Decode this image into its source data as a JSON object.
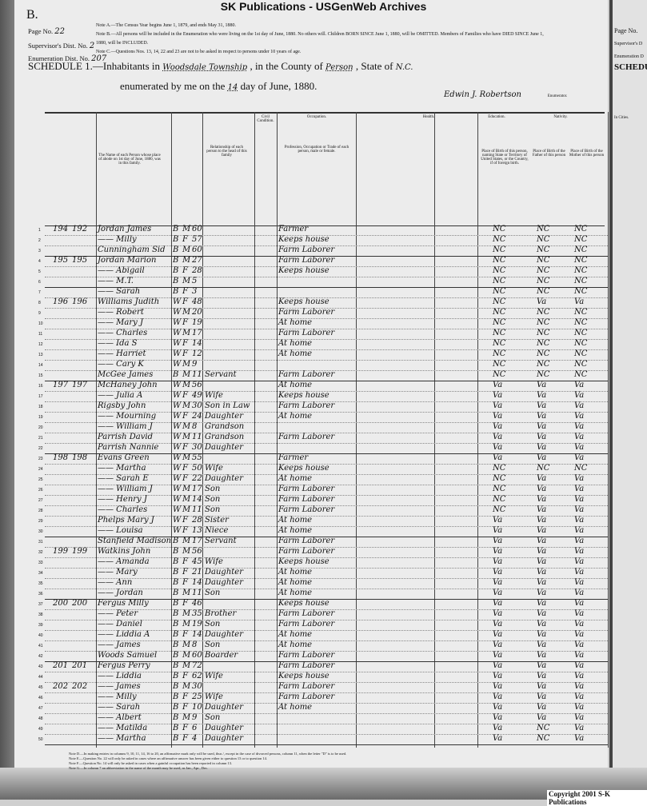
{
  "banner": "SK Publications - USGenWeb Archives",
  "corner_letter": "B.",
  "meta": {
    "page_label": "Page No.",
    "page": "22",
    "supervisor_label": "Supervisor's Dist. No.",
    "supervisor": "2",
    "enumeration_label": "Enumeration Dist. No.",
    "enumeration": "207"
  },
  "notes": [
    "Note A.—The Census Year begins June 1, 1879, and ends May 31, 1880.",
    "Note B.—All persons will be included in the Enumeration who were living on the 1st day of June, 1880. No others will. Children BORN SINCE June 1, 1880, will be OMITTED. Members of Families who have DIED SINCE June 1, 1880, will be INCLUDED.",
    "Note C.—Questions Nos. 13, 14, 22 and 23 are not to be asked in respect to persons under 10 years of age."
  ],
  "schedule": {
    "prefix": "SCHEDULE 1.—Inhabitants in",
    "township": "Woodsdale Township",
    "county_label": ", in the County of",
    "county": "Person",
    "state_label": ", State of",
    "state": "N.C.",
    "enum_prefix": "enumerated by me on the",
    "day": "14",
    "enum_suffix": "day of June, 1880.",
    "enumerator": "Edwin J. Robertson",
    "enumerator_title": "Enumerator."
  },
  "column_headers": {
    "name": "The Name of each Person whose place of abode on 1st day of June, 1880, was in this family.",
    "relationship": "Relationship of each person to the head of this family",
    "occupation": "Profession, Occupation or Trade of each person, male or female.",
    "health": "Health.",
    "education": "Education.",
    "nativity": "Nativity.",
    "birthplace": "Place of Birth of this person, naming State or Territory of United States, or the Country, if of foreign birth.",
    "father_birthplace": "Place of Birth of the Father of this person",
    "mother_birthplace": "Place of Birth of the Mother of this person",
    "civil": "Civil Condition.",
    "occupation_group": "Occupation."
  },
  "rows": [
    [
      "1",
      "194",
      "192",
      "Jordan James",
      "B",
      "M",
      "60",
      "",
      "Farmer",
      "NC",
      "NC",
      "NC"
    ],
    [
      "2",
      "",
      "",
      "—— Milly",
      "B",
      "F",
      "57",
      "",
      "Keeps house",
      "NC",
      "NC",
      "NC"
    ],
    [
      "3",
      "",
      "",
      "Cunningham Sid",
      "B",
      "M",
      "60",
      "",
      "Farm Laborer",
      "NC",
      "NC",
      "NC"
    ],
    [
      "4",
      "195",
      "195",
      "Jordan Marion",
      "B",
      "M",
      "27",
      "",
      "Farm Laborer",
      "NC",
      "NC",
      "NC"
    ],
    [
      "5",
      "",
      "",
      "—— Abigail",
      "B",
      "F",
      "28",
      "",
      "Keeps house",
      "NC",
      "NC",
      "NC"
    ],
    [
      "6",
      "",
      "",
      "—— M.T.",
      "B",
      "M",
      "5",
      "",
      "",
      "NC",
      "NC",
      "NC"
    ],
    [
      "7",
      "",
      "",
      "—— Sarah",
      "B",
      "F",
      "3",
      "",
      "",
      "NC",
      "NC",
      "NC"
    ],
    [
      "8",
      "196",
      "196",
      "Williams Judith",
      "W",
      "F",
      "48",
      "",
      "Keeps house",
      "NC",
      "Va",
      "Va"
    ],
    [
      "9",
      "",
      "",
      "—— Robert",
      "W",
      "M",
      "20",
      "",
      "Farm Laborer",
      "NC",
      "NC",
      "NC"
    ],
    [
      "10",
      "",
      "",
      "—— Mary J",
      "W",
      "F",
      "19",
      "",
      "At home",
      "NC",
      "NC",
      "NC"
    ],
    [
      "11",
      "",
      "",
      "—— Charles",
      "W",
      "M",
      "17",
      "",
      "Farm Laborer",
      "NC",
      "NC",
      "NC"
    ],
    [
      "12",
      "",
      "",
      "—— Ida S",
      "W",
      "F",
      "14",
      "",
      "At home",
      "NC",
      "NC",
      "NC"
    ],
    [
      "13",
      "",
      "",
      "—— Harriet",
      "W",
      "F",
      "12",
      "",
      "At home",
      "NC",
      "NC",
      "NC"
    ],
    [
      "14",
      "",
      "",
      "—— Cary K",
      "W",
      "M",
      "9",
      "",
      "",
      "NC",
      "NC",
      "NC"
    ],
    [
      "15",
      "",
      "",
      "McGee James",
      "B",
      "M",
      "11",
      "Servant",
      "Farm Laborer",
      "NC",
      "NC",
      "NC"
    ],
    [
      "16",
      "197",
      "197",
      "McHaney John",
      "W",
      "M",
      "56",
      "",
      "At home",
      "Va",
      "Va",
      "Va"
    ],
    [
      "17",
      "",
      "",
      "—— Julia A",
      "W",
      "F",
      "49",
      "Wife",
      "Keeps house",
      "Va",
      "Va",
      "Va"
    ],
    [
      "18",
      "",
      "",
      "Rigsby John",
      "W",
      "M",
      "30",
      "Son in Law",
      "Farm Laborer",
      "Va",
      "Va",
      "Va"
    ],
    [
      "19",
      "",
      "",
      "—— Mourning",
      "W",
      "F",
      "24",
      "Daughter",
      "At home",
      "Va",
      "Va",
      "Va"
    ],
    [
      "20",
      "",
      "",
      "—— William J",
      "W",
      "M",
      "8",
      "Grandson",
      "",
      "Va",
      "Va",
      "Va"
    ],
    [
      "21",
      "",
      "",
      "Parrish David",
      "W",
      "M",
      "11",
      "Grandson",
      "Farm Laborer",
      "Va",
      "Va",
      "Va"
    ],
    [
      "22",
      "",
      "",
      "Parrish Nannie",
      "W",
      "F",
      "30",
      "Daughter",
      "",
      "Va",
      "Va",
      "Va"
    ],
    [
      "23",
      "198",
      "198",
      "Evans Green",
      "W",
      "M",
      "55",
      "",
      "Farmer",
      "Va",
      "Va",
      "Va"
    ],
    [
      "24",
      "",
      "",
      "—— Martha",
      "W",
      "F",
      "50",
      "Wife",
      "Keeps house",
      "NC",
      "NC",
      "NC"
    ],
    [
      "25",
      "",
      "",
      "—— Sarah E",
      "W",
      "F",
      "22",
      "Daughter",
      "At home",
      "NC",
      "Va",
      "Va"
    ],
    [
      "26",
      "",
      "",
      "—— William J",
      "W",
      "M",
      "17",
      "Son",
      "Farm Laborer",
      "NC",
      "Va",
      "Va"
    ],
    [
      "27",
      "",
      "",
      "—— Henry J",
      "W",
      "M",
      "14",
      "Son",
      "Farm Laborer",
      "NC",
      "Va",
      "Va"
    ],
    [
      "28",
      "",
      "",
      "—— Charles",
      "W",
      "M",
      "11",
      "Son",
      "Farm Laborer",
      "NC",
      "Va",
      "Va"
    ],
    [
      "29",
      "",
      "",
      "Phelps Mary J",
      "W",
      "F",
      "28",
      "Sister",
      "At home",
      "Va",
      "Va",
      "Va"
    ],
    [
      "30",
      "",
      "",
      "—— Louisa",
      "W",
      "F",
      "13",
      "Niece",
      "At home",
      "Va",
      "Va",
      "Va"
    ],
    [
      "31",
      "",
      "",
      "Stanfield Madison",
      "B",
      "M",
      "17",
      "Servant",
      "Farm Laborer",
      "Va",
      "Va",
      "Va"
    ],
    [
      "32",
      "199",
      "199",
      "Watkins John",
      "B",
      "M",
      "56",
      "",
      "Farm Laborer",
      "Va",
      "Va",
      "Va"
    ],
    [
      "33",
      "",
      "",
      "—— Amanda",
      "B",
      "F",
      "45",
      "Wife",
      "Keeps house",
      "Va",
      "Va",
      "Va"
    ],
    [
      "34",
      "",
      "",
      "—— Mary",
      "B",
      "F",
      "21",
      "Daughter",
      "At home",
      "Va",
      "Va",
      "Va"
    ],
    [
      "35",
      "",
      "",
      "—— Ann",
      "B",
      "F",
      "14",
      "Daughter",
      "At home",
      "Va",
      "Va",
      "Va"
    ],
    [
      "36",
      "",
      "",
      "—— Jordan",
      "B",
      "M",
      "11",
      "Son",
      "At home",
      "Va",
      "Va",
      "Va"
    ],
    [
      "37",
      "200",
      "200",
      "Fergus Milly",
      "B",
      "F",
      "46",
      "",
      "Keeps house",
      "Va",
      "Va",
      "Va"
    ],
    [
      "38",
      "",
      "",
      "—— Peter",
      "B",
      "M",
      "35",
      "Brother",
      "Farm Laborer",
      "Va",
      "Va",
      "Va"
    ],
    [
      "39",
      "",
      "",
      "—— Daniel",
      "B",
      "M",
      "19",
      "Son",
      "Farm Laborer",
      "Va",
      "Va",
      "Va"
    ],
    [
      "40",
      "",
      "",
      "—— Liddia A",
      "B",
      "F",
      "14",
      "Daughter",
      "At home",
      "Va",
      "Va",
      "Va"
    ],
    [
      "41",
      "",
      "",
      "—— James",
      "B",
      "M",
      "8",
      "Son",
      "At home",
      "Va",
      "Va",
      "Va"
    ],
    [
      "42",
      "",
      "",
      "Woods Samuel",
      "B",
      "M",
      "60",
      "Boarder",
      "Farm Laborer",
      "Va",
      "Va",
      "Va"
    ],
    [
      "43",
      "201",
      "201",
      "Fergus Perry",
      "B",
      "M",
      "72",
      "",
      "Farm Laborer",
      "Va",
      "Va",
      "Va"
    ],
    [
      "44",
      "",
      "",
      "—— Liddia",
      "B",
      "F",
      "62",
      "Wife",
      "Keeps house",
      "Va",
      "Va",
      "Va"
    ],
    [
      "45",
      "202",
      "202",
      "—— James",
      "B",
      "M",
      "30",
      "",
      "Farm Laborer",
      "Va",
      "Va",
      "Va"
    ],
    [
      "46",
      "",
      "",
      "—— Milly",
      "B",
      "F",
      "25",
      "Wife",
      "Farm Laborer",
      "Va",
      "Va",
      "Va"
    ],
    [
      "47",
      "",
      "",
      "—— Sarah",
      "B",
      "F",
      "10",
      "Daughter",
      "At home",
      "Va",
      "Va",
      "Va"
    ],
    [
      "48",
      "",
      "",
      "—— Albert",
      "B",
      "M",
      "9",
      "Son",
      "",
      "Va",
      "Va",
      "Va"
    ],
    [
      "49",
      "",
      "",
      "—— Matilda",
      "B",
      "F",
      "6",
      "Daughter",
      "",
      "Va",
      "NC",
      "Va"
    ],
    [
      "50",
      "",
      "",
      "—— Martha",
      "B",
      "F",
      "4",
      "Daughter",
      "",
      "Va",
      "NC",
      "Va"
    ]
  ],
  "footnotes": [
    "Note D.—In making entries in columns 9, 10, 11, 14, 16 to 20, an affirmative mark only will be used, thus /, except in the case of divorced persons, column 11, when the letter \"D\" is to be used.",
    "Note E.—Question No. 22 will only be asked in cases where an affirmative answer has been given either to question 13 or to question 14.",
    "Note F.—Question No. 14 will only be asked in cases when a gainful occupation has been reported in column 13.",
    "Note G.—In column 7 an abbreviation in the name of the month may be used, as Jan., Apr., Dec."
  ],
  "right_page": {
    "page_label": "Page No.",
    "supervisor_label": "Supervisor's D",
    "enumeration_label": "Enumeration D",
    "schedule_label": "SCHEDU",
    "in_cities": "In Cities."
  },
  "copyright": "Copyright 2001 S-K Publications"
}
